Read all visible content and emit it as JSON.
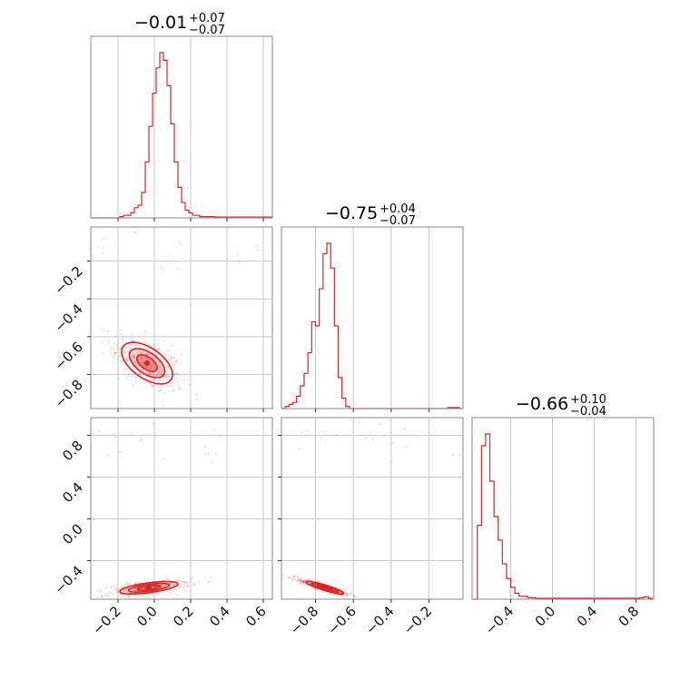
{
  "chart_data": {
    "type": "corner",
    "color": "#d62728",
    "parameters": [
      {
        "median_label": "−0.01",
        "plus_label": "+0.07",
        "minus_label": "−0.07",
        "range": [
          -0.35,
          0.65
        ],
        "ticks": [
          -0.2,
          0.0,
          0.2,
          0.4,
          0.6
        ],
        "tick_labels": [
          "−0.2",
          "0.0",
          "0.2",
          "0.4",
          "0.6"
        ],
        "hist_edges_start": -0.35,
        "hist_bin_width": 0.02,
        "hist_counts": [
          0,
          0,
          0,
          0,
          0,
          0,
          0,
          0,
          0.5,
          1,
          1,
          2,
          4,
          5,
          10,
          22,
          36,
          49,
          59,
          65,
          62,
          52,
          37,
          22,
          12,
          6,
          3,
          2,
          1,
          1,
          0.5,
          0.5,
          0.5,
          0.5,
          0.3,
          0.3,
          0.3,
          0.3,
          0.3,
          0.3,
          0.3,
          0.3,
          0.3,
          0.3,
          0.3,
          0.3,
          0.3,
          0.3,
          0.3,
          0.3
        ]
      },
      {
        "median_label": "−0.75",
        "plus_label": "+0.04",
        "minus_label": "−0.07",
        "range": [
          -0.98,
          -0.02
        ],
        "ticks": [
          -0.8,
          -0.6,
          -0.4,
          -0.2
        ],
        "tick_labels": [
          "−0.8",
          "−0.6",
          "−0.4",
          "−0.2"
        ],
        "hist_edges_start": -0.98,
        "hist_bin_width": 0.02,
        "hist_counts": [
          0,
          1,
          2,
          3,
          6,
          11,
          17,
          27,
          42,
          40,
          58,
          75,
          80,
          68,
          40,
          15,
          5,
          1,
          0,
          0,
          0,
          0,
          0,
          0,
          0,
          0,
          0,
          0,
          0,
          0,
          0,
          0,
          0,
          0,
          0,
          0,
          0,
          0,
          0,
          0,
          0,
          0,
          0,
          0,
          0.5,
          0.5,
          0.5,
          0
        ]
      },
      {
        "median_label": "−0.66",
        "plus_label": "+0.10",
        "minus_label": "−0.04",
        "range": [
          -0.77,
          0.97
        ],
        "ticks": [
          -0.4,
          0.0,
          0.4,
          0.8
        ],
        "tick_labels": [
          "−0.4",
          "0.0",
          "0.4",
          "0.8"
        ],
        "hist_edges_start": -0.76,
        "hist_bin_width": 0.04,
        "hist_counts": [
          0,
          25,
          52,
          56,
          40,
          28,
          20,
          12,
          7,
          4,
          2,
          1,
          1,
          0.5,
          0.5,
          0.3,
          0.3,
          0.3,
          0.3,
          0.3,
          0.3,
          0.3,
          0.3,
          0.3,
          0.3,
          0.3,
          0.3,
          0.3,
          0.3,
          0.3,
          0.3,
          0.3,
          0.3,
          0.3,
          0.3,
          0.3,
          0.3,
          0.3,
          0.3,
          0.3,
          0.5,
          0.8,
          0.3
        ]
      }
    ],
    "pairs": [
      {
        "x_param": 0,
        "y_param": 1,
        "center": [
          -0.04,
          -0.74
        ],
        "sd": [
          0.07,
          0.055
        ],
        "rho": -0.55
      },
      {
        "x_param": 0,
        "y_param": 2,
        "center": [
          -0.03,
          -0.66
        ],
        "sd": [
          0.08,
          0.03
        ],
        "rho": 0.6
      },
      {
        "x_param": 1,
        "y_param": 2,
        "center": [
          -0.75,
          -0.66
        ],
        "sd": [
          0.05,
          0.03
        ],
        "rho": -0.9
      }
    ]
  }
}
